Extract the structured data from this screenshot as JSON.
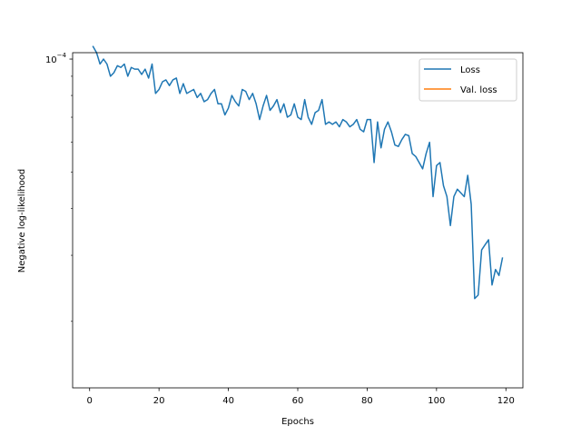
{
  "chart_data": {
    "type": "line",
    "title": "",
    "xlabel": "Epochs",
    "ylabel": "Negative log-likelihood",
    "yscale": "log",
    "xlim": [
      -4.9,
      124.9
    ],
    "ylim": [
      1.33e-05,
      0.000104
    ],
    "xticks": [
      0,
      20,
      40,
      60,
      80,
      100,
      120
    ],
    "xtick_labels": [
      "0",
      "20",
      "40",
      "60",
      "80",
      "100",
      "120"
    ],
    "yticks": [
      0.0001
    ],
    "ytick_labels": [
      {
        "base": "10",
        "exp": "−4"
      }
    ],
    "grid": false,
    "legend": {
      "placement": "top-right",
      "entries": [
        {
          "name": "Loss",
          "color": "#1f77b4"
        },
        {
          "name": "Val. loss",
          "color": "#ff7f0e"
        }
      ]
    },
    "series": [
      {
        "name": "Loss",
        "color": "#1f77b4",
        "x": [
          1,
          2,
          3,
          4,
          5,
          6,
          7,
          8,
          9,
          10,
          11,
          12,
          13,
          14,
          15,
          16,
          17,
          18,
          19,
          20,
          21,
          22,
          23,
          24,
          25,
          26,
          27,
          28,
          29,
          30,
          31,
          32,
          33,
          34,
          35,
          36,
          37,
          38,
          39,
          40,
          41,
          42,
          43,
          44,
          45,
          46,
          47,
          48,
          49,
          50,
          51,
          52,
          53,
          54,
          55,
          56,
          57,
          58,
          59,
          60,
          61,
          62,
          63,
          64,
          65,
          66,
          67,
          68,
          69,
          70,
          71,
          72,
          73,
          74,
          75,
          76,
          77,
          78,
          79,
          80,
          81,
          82,
          83,
          84,
          85,
          86,
          87,
          88,
          89,
          90,
          91,
          92,
          93,
          94,
          95,
          96,
          97,
          98,
          99,
          100,
          101,
          102,
          103,
          104,
          105,
          106,
          107,
          108,
          109,
          110,
          111,
          112,
          113,
          114,
          115,
          116,
          117,
          118,
          119
        ],
        "y": [
          0.000108,
          0.000104,
          9.7e-05,
          0.0001,
          9.7e-05,
          9e-05,
          9.2e-05,
          9.6e-05,
          9.5e-05,
          9.7e-05,
          9e-05,
          9.5e-05,
          9.4e-05,
          9.4e-05,
          9.1e-05,
          9.4e-05,
          8.9e-05,
          9.7e-05,
          8.1e-05,
          8.3e-05,
          8.7e-05,
          8.8e-05,
          8.5e-05,
          8.8e-05,
          8.9e-05,
          8.1e-05,
          8.6e-05,
          8.1e-05,
          8.2e-05,
          8.3e-05,
          7.9e-05,
          8.1e-05,
          7.7e-05,
          7.8e-05,
          8.1e-05,
          8.3e-05,
          7.6e-05,
          7.6e-05,
          7.1e-05,
          7.4e-05,
          8e-05,
          7.7e-05,
          7.5e-05,
          8.3e-05,
          8.2e-05,
          7.8e-05,
          8.1e-05,
          7.6e-05,
          6.9e-05,
          7.5e-05,
          8e-05,
          7.3e-05,
          7.5e-05,
          7.8e-05,
          7.2e-05,
          7.6e-05,
          7e-05,
          7.1e-05,
          7.6e-05,
          7e-05,
          6.9e-05,
          7.8e-05,
          7e-05,
          6.7e-05,
          7.2e-05,
          7.3e-05,
          7.8e-05,
          6.7e-05,
          6.8e-05,
          6.7e-05,
          6.8e-05,
          6.6e-05,
          6.9e-05,
          6.8e-05,
          6.6e-05,
          6.7e-05,
          6.9e-05,
          6.5e-05,
          6.4e-05,
          6.9e-05,
          6.9e-05,
          5.3e-05,
          6.8e-05,
          5.8e-05,
          6.5e-05,
          6.8e-05,
          6.4e-05,
          5.9e-05,
          5.85e-05,
          6.1e-05,
          6.3e-05,
          6.25e-05,
          5.6e-05,
          5.5e-05,
          5.3e-05,
          5.1e-05,
          5.6e-05,
          6e-05,
          4.3e-05,
          5.2e-05,
          5.3e-05,
          4.6e-05,
          4.3e-05,
          3.6e-05,
          4.3e-05,
          4.5e-05,
          4.4e-05,
          4.3e-05,
          4.9e-05,
          4.1e-05,
          2.3e-05,
          2.35e-05,
          3.1e-05,
          3.2e-05,
          3.3e-05,
          2.5e-05,
          2.75e-05,
          2.65e-05,
          2.95e-05
        ]
      },
      {
        "name": "Val. loss",
        "color": "#ff7f0e",
        "x": [],
        "y": []
      }
    ]
  }
}
